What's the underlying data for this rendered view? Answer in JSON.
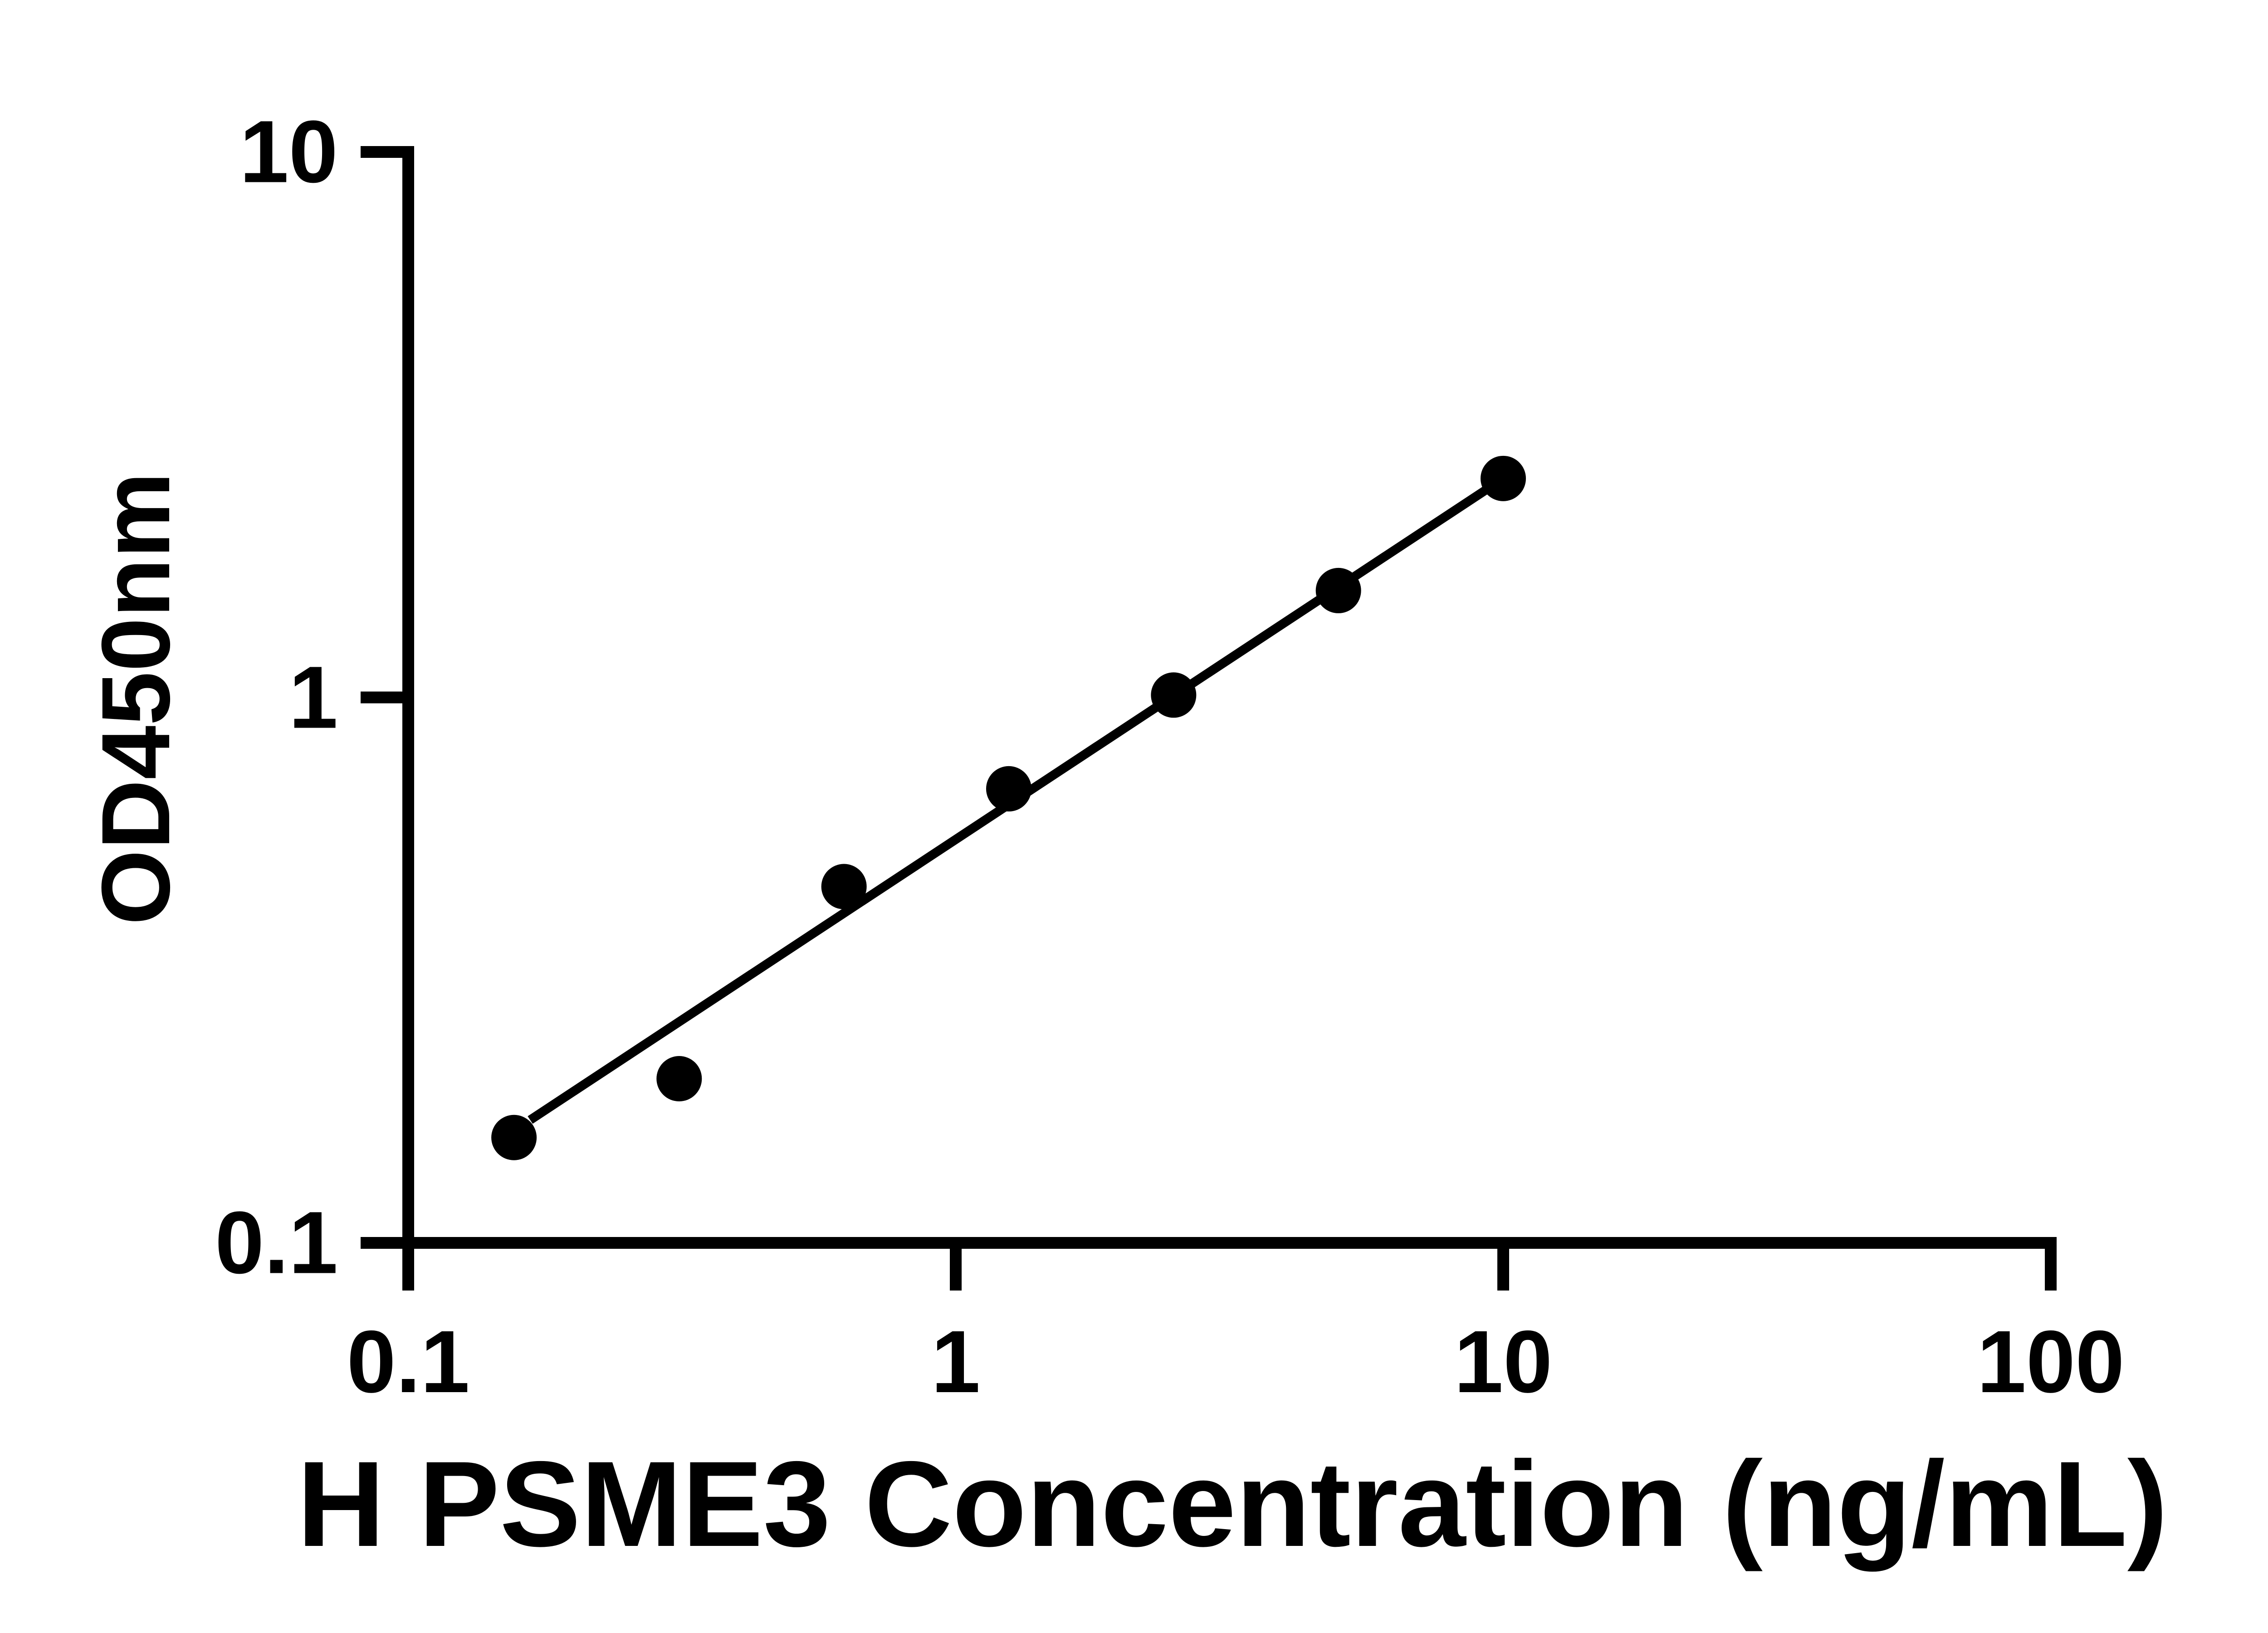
{
  "chart_data": {
    "type": "scatter",
    "title": "",
    "xlabel": "H PSME3 Concentration (ng/mL)",
    "ylabel": "OD450nm",
    "x_scale": "log",
    "y_scale": "log",
    "xlim": [
      0.1,
      100
    ],
    "ylim": [
      0.1,
      10
    ],
    "grid": false,
    "legend": false,
    "x_ticks": [
      {
        "value": 0.1,
        "label": "0.1"
      },
      {
        "value": 1,
        "label": "1"
      },
      {
        "value": 10,
        "label": "10"
      },
      {
        "value": 100,
        "label": "100"
      }
    ],
    "y_ticks": [
      {
        "value": 0.1,
        "label": "0.1"
      },
      {
        "value": 1,
        "label": "1"
      },
      {
        "value": 10,
        "label": "10"
      }
    ],
    "series": [
      {
        "name": "standard-curve-points",
        "marker": "circle",
        "color": "#000000",
        "points": [
          {
            "x": 0.156,
            "y": 0.156
          },
          {
            "x": 0.3125,
            "y": 0.2
          },
          {
            "x": 0.625,
            "y": 0.45
          },
          {
            "x": 1.25,
            "y": 0.68
          },
          {
            "x": 2.5,
            "y": 1.01
          },
          {
            "x": 5,
            "y": 1.57
          },
          {
            "x": 10,
            "y": 2.52
          }
        ]
      }
    ],
    "trend_line": {
      "x1": 0.167,
      "y1": 0.168,
      "x2": 10,
      "y2": 2.52
    },
    "colors": {
      "foreground": "#000000",
      "background": "#ffffff"
    }
  }
}
